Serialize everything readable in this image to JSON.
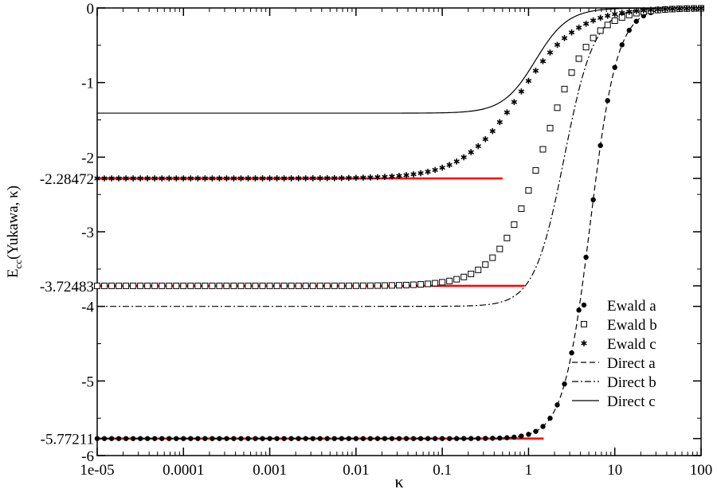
{
  "chart_data": {
    "type": "scatter",
    "xlabel": "κ",
    "ylabel_main": "E",
    "ylabel_sub": "cc",
    "ylabel_rest": "(Yukawa, κ)",
    "x_scale": "log",
    "xlim": [
      1e-05,
      100
    ],
    "ylim": [
      -6,
      0
    ],
    "x_ticks": [
      {
        "value": 1e-05,
        "label": "1e-05"
      },
      {
        "value": 0.0001,
        "label": "0.0001"
      },
      {
        "value": 0.001,
        "label": "0.001"
      },
      {
        "value": 0.01,
        "label": "0.01"
      },
      {
        "value": 0.1,
        "label": "0.1"
      },
      {
        "value": 1,
        "label": "1"
      },
      {
        "value": 10,
        "label": "10"
      },
      {
        "value": 100,
        "label": "100"
      }
    ],
    "y_ticks": [
      {
        "value": 0,
        "label": "0"
      },
      {
        "value": -1,
        "label": "-1"
      },
      {
        "value": -2,
        "label": "-2"
      },
      {
        "value": -2.28472,
        "label": "-2.28472"
      },
      {
        "value": -3,
        "label": "-3"
      },
      {
        "value": -3.72483,
        "label": "-3.72483"
      },
      {
        "value": -4,
        "label": "-4"
      },
      {
        "value": -5,
        "label": "-5"
      },
      {
        "value": -5.77211,
        "label": "-5.77211"
      },
      {
        "value": -6,
        "label": "-6"
      }
    ],
    "grid": false,
    "legend_position": "bottom-right",
    "series": [
      {
        "name": "Ewald a",
        "kind": "marker",
        "marker": "filled-circle",
        "E0": -5.77211,
        "k0": 5.2,
        "n": 2.8
      },
      {
        "name": "Ewald b",
        "kind": "marker",
        "marker": "open-square",
        "E0": -3.72483,
        "k0": 1.5,
        "n": 1.6
      },
      {
        "name": "Ewald c",
        "kind": "marker",
        "marker": "asterisk",
        "E0": -2.28472,
        "k0": 0.8,
        "n": 1.3
      },
      {
        "name": "Direct a",
        "kind": "line",
        "dash": "dashed",
        "E0": -5.77211,
        "k0": 5.2,
        "n": 2.8
      },
      {
        "name": "Direct b",
        "kind": "line",
        "dash": "dash-dot",
        "E0": -4.0,
        "k0": 2.6,
        "n": 2.5
      },
      {
        "name": "Direct c",
        "kind": "line",
        "dash": "solid",
        "E0": -1.41,
        "k0": 1.2,
        "n": 2.3
      }
    ],
    "reference_lines": [
      {
        "y": -2.28472,
        "x_start": 1e-05,
        "x_end": 0.5,
        "color": "#ff0000"
      },
      {
        "y": -3.72483,
        "x_start": 1e-05,
        "x_end": 0.9,
        "color": "#ff0000"
      },
      {
        "y": -5.77211,
        "x_start": 1e-05,
        "x_end": 1.5,
        "color": "#ff0000"
      }
    ],
    "marker_color": "#000000",
    "line_color": "#000000"
  }
}
